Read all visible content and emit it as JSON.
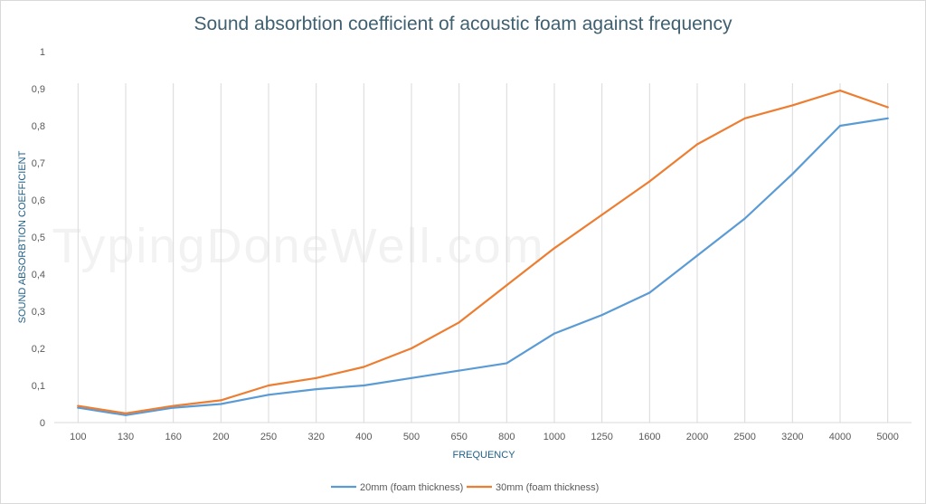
{
  "watermark": "TypingDoneWell.com",
  "chart_data": {
    "type": "line",
    "title": "Sound absorbtion coefficient of acoustic foam against frequency",
    "xlabel": "FREQUENCY",
    "ylabel": "SOUND ABSORBTION COEFFICIENT",
    "categories": [
      "100",
      "130",
      "160",
      "200",
      "250",
      "320",
      "400",
      "500",
      "650",
      "800",
      "1000",
      "1250",
      "1600",
      "2000",
      "2500",
      "3200",
      "4000",
      "5000"
    ],
    "ylim": [
      0,
      1
    ],
    "yticks": [
      0,
      0.1,
      0.2,
      0.3,
      0.4,
      0.5,
      0.6,
      0.7,
      0.8,
      0.9,
      1
    ],
    "ytick_labels": [
      "0",
      "0,1",
      "0,2",
      "0,3",
      "0,4",
      "0,5",
      "0,6",
      "0,7",
      "0,8",
      "0,9",
      "1"
    ],
    "grid": "vertical",
    "legend_position": "bottom",
    "series": [
      {
        "name": "20mm (foam thickness)",
        "color": "#5b9bd5",
        "values": [
          0.04,
          0.02,
          0.04,
          0.05,
          0.075,
          0.09,
          0.1,
          0.12,
          0.14,
          0.16,
          0.24,
          0.29,
          0.35,
          0.45,
          0.55,
          0.67,
          0.8,
          0.82
        ]
      },
      {
        "name": "30mm (foam thickness)",
        "color": "#ed7d31",
        "values": [
          0.045,
          0.025,
          0.045,
          0.06,
          0.1,
          0.12,
          0.15,
          0.2,
          0.27,
          0.37,
          0.47,
          0.56,
          0.65,
          0.75,
          0.82,
          0.855,
          0.895,
          0.85
        ]
      }
    ]
  }
}
